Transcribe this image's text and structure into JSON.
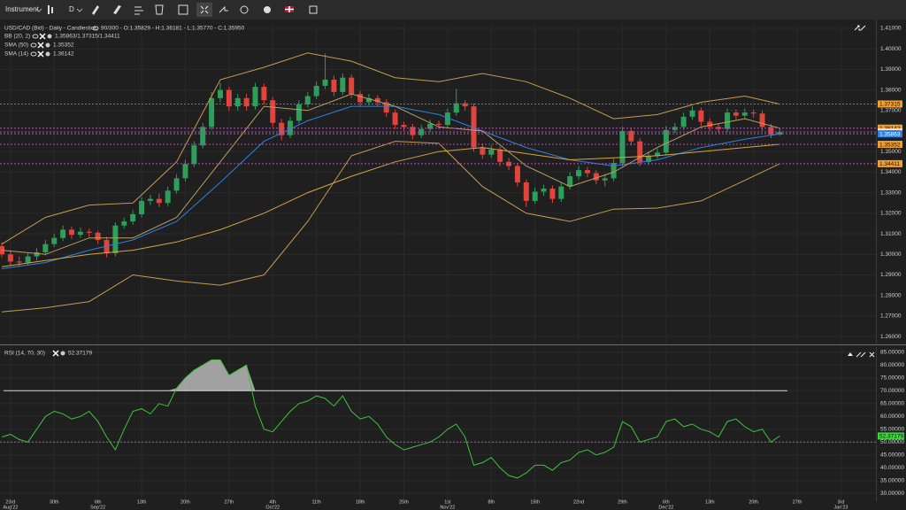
{
  "toolbar": {
    "instrument": "Instrument",
    "period": "D"
  },
  "chart_data": [
    {
      "type": "candlestick",
      "title": "USD/CAD (Bid) - Daily - Candlestick",
      "info": "90/300 - O:1.35829 - H:1.36181 - L:1.35770 - C:1.35950",
      "up_color": "#2e9e5b",
      "down_color": "#e0443c",
      "xlim": [
        -0.2,
        100
      ],
      "ylim": [
        1.2566,
        1.4117
      ],
      "open": [
        1.304,
        1.3,
        1.2965,
        1.296,
        1.299,
        1.301,
        1.305,
        1.308,
        1.312,
        1.3095,
        1.311,
        1.3105,
        1.307,
        1.3005,
        1.314,
        1.316,
        1.3195,
        1.326,
        1.327,
        1.325,
        1.331,
        1.337,
        1.344,
        1.353,
        1.362,
        1.376,
        1.38,
        1.372,
        1.376,
        1.372,
        1.3815,
        1.375,
        1.364,
        1.358,
        1.365,
        1.373,
        1.377,
        1.382,
        1.385,
        1.379,
        1.386,
        1.378,
        1.374,
        1.376,
        1.374,
        1.369,
        1.363,
        1.362,
        1.358,
        1.361,
        1.3635,
        1.363,
        1.369,
        1.3735,
        1.372,
        1.352,
        1.3485,
        1.351,
        1.345,
        1.343,
        1.335,
        1.326,
        1.3305,
        1.332,
        1.327,
        1.333,
        1.338,
        1.341,
        1.3395,
        1.336,
        1.337,
        1.3445,
        1.36,
        1.355,
        1.345,
        1.348,
        1.3495,
        1.3605,
        1.362,
        1.367,
        1.37,
        1.3645,
        1.362,
        1.361,
        1.369,
        1.3675,
        1.369,
        1.3685,
        1.362,
        1.35829
      ],
      "high": [
        1.3058,
        1.302,
        1.299,
        1.3005,
        1.303,
        1.307,
        1.31,
        1.314,
        1.3135,
        1.313,
        1.3125,
        1.3115,
        1.3085,
        1.3155,
        1.318,
        1.3215,
        1.328,
        1.329,
        1.3295,
        1.333,
        1.339,
        1.346,
        1.355,
        1.364,
        1.379,
        1.3835,
        1.3815,
        1.378,
        1.378,
        1.3835,
        1.383,
        1.3765,
        1.366,
        1.367,
        1.375,
        1.379,
        1.384,
        1.3977,
        1.387,
        1.388,
        1.3875,
        1.3795,
        1.378,
        1.3775,
        1.3755,
        1.3705,
        1.3645,
        1.3635,
        1.363,
        1.3655,
        1.365,
        1.371,
        1.3805,
        1.375,
        1.3735,
        1.354,
        1.353,
        1.3525,
        1.347,
        1.3445,
        1.3365,
        1.3325,
        1.334,
        1.3335,
        1.335,
        1.34,
        1.343,
        1.3425,
        1.341,
        1.339,
        1.3465,
        1.362,
        1.3615,
        1.3565,
        1.35,
        1.3515,
        1.3625,
        1.364,
        1.369,
        1.372,
        1.3715,
        1.366,
        1.3635,
        1.371,
        1.3705,
        1.371,
        1.3705,
        1.37,
        1.3635,
        1.36181
      ],
      "low": [
        1.2985,
        1.2945,
        1.294,
        1.2945,
        1.297,
        1.2995,
        1.3035,
        1.3065,
        1.3075,
        1.308,
        1.3085,
        1.305,
        1.2985,
        1.299,
        1.3125,
        1.3145,
        1.318,
        1.324,
        1.323,
        1.3235,
        1.3295,
        1.3355,
        1.3425,
        1.3515,
        1.3605,
        1.374,
        1.37,
        1.37,
        1.37,
        1.3705,
        1.373,
        1.362,
        1.3555,
        1.3565,
        1.3635,
        1.3715,
        1.3755,
        1.3805,
        1.377,
        1.3775,
        1.376,
        1.372,
        1.3725,
        1.372,
        1.367,
        1.361,
        1.36,
        1.356,
        1.3565,
        1.3595,
        1.361,
        1.3615,
        1.3675,
        1.37,
        1.35,
        1.3465,
        1.347,
        1.343,
        1.341,
        1.333,
        1.323,
        1.3245,
        1.3285,
        1.325,
        1.3255,
        1.3315,
        1.3365,
        1.3375,
        1.334,
        1.333,
        1.3355,
        1.343,
        1.353,
        1.343,
        1.3435,
        1.3465,
        1.348,
        1.359,
        1.3605,
        1.3655,
        1.3625,
        1.36,
        1.359,
        1.3595,
        1.3655,
        1.366,
        1.3665,
        1.36,
        1.3565,
        1.3577
      ],
      "close": [
        1.3,
        1.2965,
        1.296,
        1.299,
        1.301,
        1.305,
        1.308,
        1.312,
        1.3095,
        1.311,
        1.3105,
        1.307,
        1.3005,
        1.314,
        1.316,
        1.3195,
        1.326,
        1.327,
        1.325,
        1.331,
        1.337,
        1.344,
        1.353,
        1.362,
        1.376,
        1.38,
        1.372,
        1.376,
        1.372,
        1.3815,
        1.375,
        1.364,
        1.358,
        1.365,
        1.373,
        1.377,
        1.382,
        1.385,
        1.379,
        1.386,
        1.378,
        1.374,
        1.376,
        1.374,
        1.369,
        1.363,
        1.362,
        1.358,
        1.361,
        1.3635,
        1.363,
        1.369,
        1.3735,
        1.372,
        1.352,
        1.3485,
        1.351,
        1.345,
        1.343,
        1.335,
        1.326,
        1.3305,
        1.332,
        1.327,
        1.333,
        1.338,
        1.341,
        1.3395,
        1.336,
        1.337,
        1.3445,
        1.36,
        1.355,
        1.345,
        1.348,
        1.3495,
        1.3605,
        1.362,
        1.367,
        1.37,
        1.3645,
        1.362,
        1.361,
        1.369,
        1.3675,
        1.369,
        1.3685,
        1.362,
        1.3583,
        1.3595
      ],
      "indicators": [
        {
          "name": "BB (20, 2)",
          "label": "1.35863/1.37315/1.34411",
          "color": "#c89a50",
          "middle_color": "#2f80e0",
          "x": [
            0,
            5,
            10,
            15,
            20,
            25,
            30,
            35,
            40,
            45,
            50,
            55,
            60,
            65,
            70,
            75,
            80,
            85,
            89
          ],
          "upper": [
            1.305,
            1.318,
            1.324,
            1.325,
            1.345,
            1.385,
            1.391,
            1.398,
            1.394,
            1.386,
            1.384,
            1.388,
            1.384,
            1.376,
            1.366,
            1.368,
            1.374,
            1.377,
            1.37315
          ],
          "middle": [
            1.293,
            1.296,
            1.302,
            1.307,
            1.316,
            1.335,
            1.355,
            1.365,
            1.372,
            1.372,
            1.368,
            1.36,
            1.352,
            1.346,
            1.343,
            1.346,
            1.352,
            1.356,
            1.35863
          ],
          "lower": [
            1.272,
            1.274,
            1.277,
            1.29,
            1.287,
            1.285,
            1.29,
            1.316,
            1.348,
            1.355,
            1.354,
            1.333,
            1.32,
            1.316,
            1.322,
            1.3225,
            1.326,
            1.336,
            1.34411
          ]
        },
        {
          "name": "SMA (50)",
          "label": "1.35352",
          "color": "#d9a441",
          "x": [
            0,
            5,
            10,
            15,
            20,
            25,
            30,
            35,
            40,
            45,
            50,
            55,
            60,
            65,
            70,
            75,
            80,
            85,
            89
          ],
          "values": [
            1.294,
            1.297,
            1.3,
            1.302,
            1.306,
            1.312,
            1.32,
            1.33,
            1.338,
            1.345,
            1.35,
            1.352,
            1.349,
            1.346,
            1.347,
            1.348,
            1.35,
            1.352,
            1.35352
          ]
        },
        {
          "name": "SMA (14)",
          "label": "1.36142",
          "color": "#b8a060",
          "x": [
            0,
            5,
            10,
            15,
            20,
            25,
            30,
            35,
            40,
            45,
            50,
            55,
            60,
            65,
            70,
            75,
            80,
            85,
            89
          ],
          "values": [
            1.302,
            1.3,
            1.308,
            1.308,
            1.318,
            1.345,
            1.372,
            1.37,
            1.378,
            1.372,
            1.362,
            1.36,
            1.343,
            1.333,
            1.34,
            1.352,
            1.362,
            1.366,
            1.36142
          ]
        }
      ],
      "tags": [
        {
          "value": 1.37315,
          "label": "1.37315",
          "color": "#f0a030"
        },
        {
          "value": 1.36142,
          "label": "1.36142",
          "color": "#f0a030"
        },
        {
          "value": 1.3595,
          "label": "1.35950",
          "color": "#e8e8e8"
        },
        {
          "value": 1.35863,
          "label": "1.35863",
          "color": "#2f80e0"
        },
        {
          "value": 1.35352,
          "label": "1.35352",
          "color": "#f0a030"
        },
        {
          "value": 1.34411,
          "label": "1.34411",
          "color": "#f0a030"
        }
      ],
      "yticks": [
        {
          "value": 1.26,
          "label": "1.26000"
        },
        {
          "value": 1.27,
          "label": "1.27000"
        },
        {
          "value": 1.28,
          "label": "1.28000"
        },
        {
          "value": 1.29,
          "label": "1.29000"
        },
        {
          "value": 1.3,
          "label": "1.30000"
        },
        {
          "value": 1.31,
          "label": "1.31000"
        },
        {
          "value": 1.32,
          "label": "1.32000"
        },
        {
          "value": 1.33,
          "label": "1.33000"
        },
        {
          "value": 1.34,
          "label": "1.34000"
        },
        {
          "value": 1.35,
          "label": "1.35000"
        },
        {
          "value": 1.36,
          "label": "1.36000"
        },
        {
          "value": 1.37,
          "label": "1.37000"
        },
        {
          "value": 1.38,
          "label": "1.38000"
        },
        {
          "value": 1.39,
          "label": "1.39000"
        },
        {
          "value": 1.4,
          "label": "1.40000"
        },
        {
          "value": 1.41,
          "label": "1.41000"
        }
      ],
      "grid": true
    },
    {
      "type": "line",
      "title": "RSI (14, 70, 30)",
      "label": "52.37179",
      "color": "#3cc43c",
      "fill_color": "#b8b8b8",
      "xlim": [
        -0.2,
        100
      ],
      "ylim": [
        27,
        87
      ],
      "overbought": 70,
      "middle": 50,
      "values": [
        52,
        53,
        51,
        50,
        55,
        60,
        62,
        61,
        59,
        60,
        62,
        58,
        52,
        47,
        55,
        62,
        63,
        61,
        65,
        64,
        71,
        75,
        78,
        80,
        82,
        82,
        76,
        78,
        80,
        64,
        55,
        54,
        58,
        62,
        65,
        66,
        68,
        67,
        64,
        68,
        62,
        59,
        60,
        57,
        52,
        49,
        47,
        48,
        49,
        50,
        52,
        55,
        57,
        52,
        41,
        42,
        44,
        40,
        37,
        36,
        38,
        41,
        41,
        39,
        42,
        43,
        46,
        47,
        45,
        46,
        48,
        58,
        56,
        50,
        51,
        52,
        58,
        59,
        56,
        57,
        55,
        54,
        52,
        58,
        59,
        56,
        54,
        55,
        50,
        52.37179
      ],
      "tag": {
        "value": 52.37179,
        "label": "52.37179",
        "color": "#33dd33"
      },
      "yticks": [
        {
          "value": 30,
          "label": "30.00000"
        },
        {
          "value": 35,
          "label": "35.00000"
        },
        {
          "value": 40,
          "label": "40.00000"
        },
        {
          "value": 45,
          "label": "45.00000"
        },
        {
          "value": 50,
          "label": "50.00000"
        },
        {
          "value": 55,
          "label": "55.00000"
        },
        {
          "value": 60,
          "label": "60.00000"
        },
        {
          "value": 65,
          "label": "65.00000"
        },
        {
          "value": 70,
          "label": "70.00000"
        },
        {
          "value": 75,
          "label": "75.00000"
        },
        {
          "value": 80,
          "label": "80.00000"
        },
        {
          "value": 85,
          "label": "85.00000"
        }
      ],
      "xticks": [
        {
          "value": 1,
          "label": "23rd",
          "sub": "Aug'22"
        },
        {
          "value": 6,
          "label": "30th"
        },
        {
          "value": 11,
          "label": "6th",
          "sub": "Sep'22"
        },
        {
          "value": 16,
          "label": "13th"
        },
        {
          "value": 21,
          "label": "20th"
        },
        {
          "value": 26,
          "label": "27th"
        },
        {
          "value": 31,
          "label": "4th",
          "sub": "Oct'22"
        },
        {
          "value": 36,
          "label": "11th"
        },
        {
          "value": 41,
          "label": "18th"
        },
        {
          "value": 46,
          "label": "25th"
        },
        {
          "value": 51,
          "label": "1st",
          "sub": "Nov'22"
        },
        {
          "value": 56,
          "label": "8th"
        },
        {
          "value": 61,
          "label": "15th"
        },
        {
          "value": 66,
          "label": "22nd"
        },
        {
          "value": 71,
          "label": "29th"
        },
        {
          "value": 76,
          "label": "6th",
          "sub": "Dec'22"
        },
        {
          "value": 81,
          "label": "13th"
        },
        {
          "value": 86,
          "label": "20th"
        },
        {
          "value": 91,
          "label": "27th"
        },
        {
          "value": 96,
          "label": "3rd",
          "sub": "Jan'23"
        }
      ],
      "grid": true
    }
  ]
}
